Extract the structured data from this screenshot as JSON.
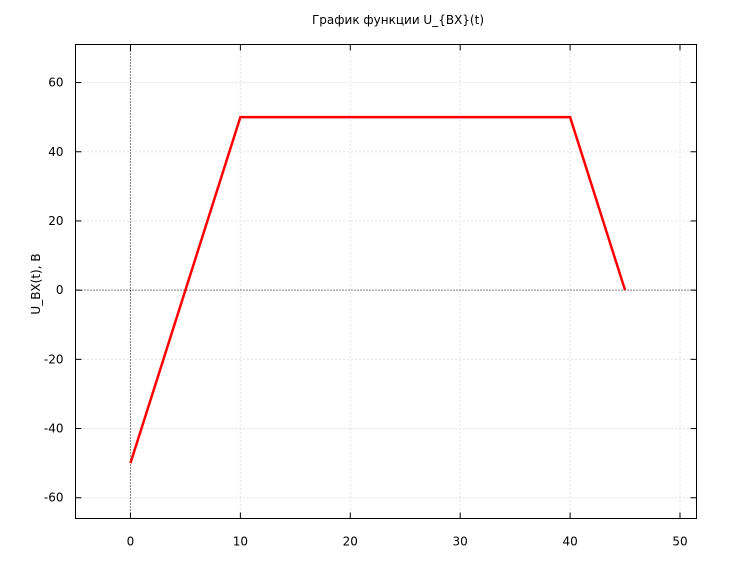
{
  "chart_data": {
    "type": "line",
    "title": "График функции U_{BX}(t)",
    "xlabel": "",
    "ylabel": "U_BX(t), B",
    "xlim": [
      -5,
      51.5
    ],
    "ylim": [
      -66,
      71
    ],
    "xticks": [
      0,
      10,
      20,
      30,
      40,
      50
    ],
    "yticks": [
      -60,
      -40,
      -20,
      0,
      20,
      40,
      60
    ],
    "grid": true,
    "series": [
      {
        "color": "#ff0000",
        "x": [
          0,
          10,
          40,
          45
        ],
        "y": [
          -50,
          50,
          50,
          0
        ]
      }
    ]
  }
}
